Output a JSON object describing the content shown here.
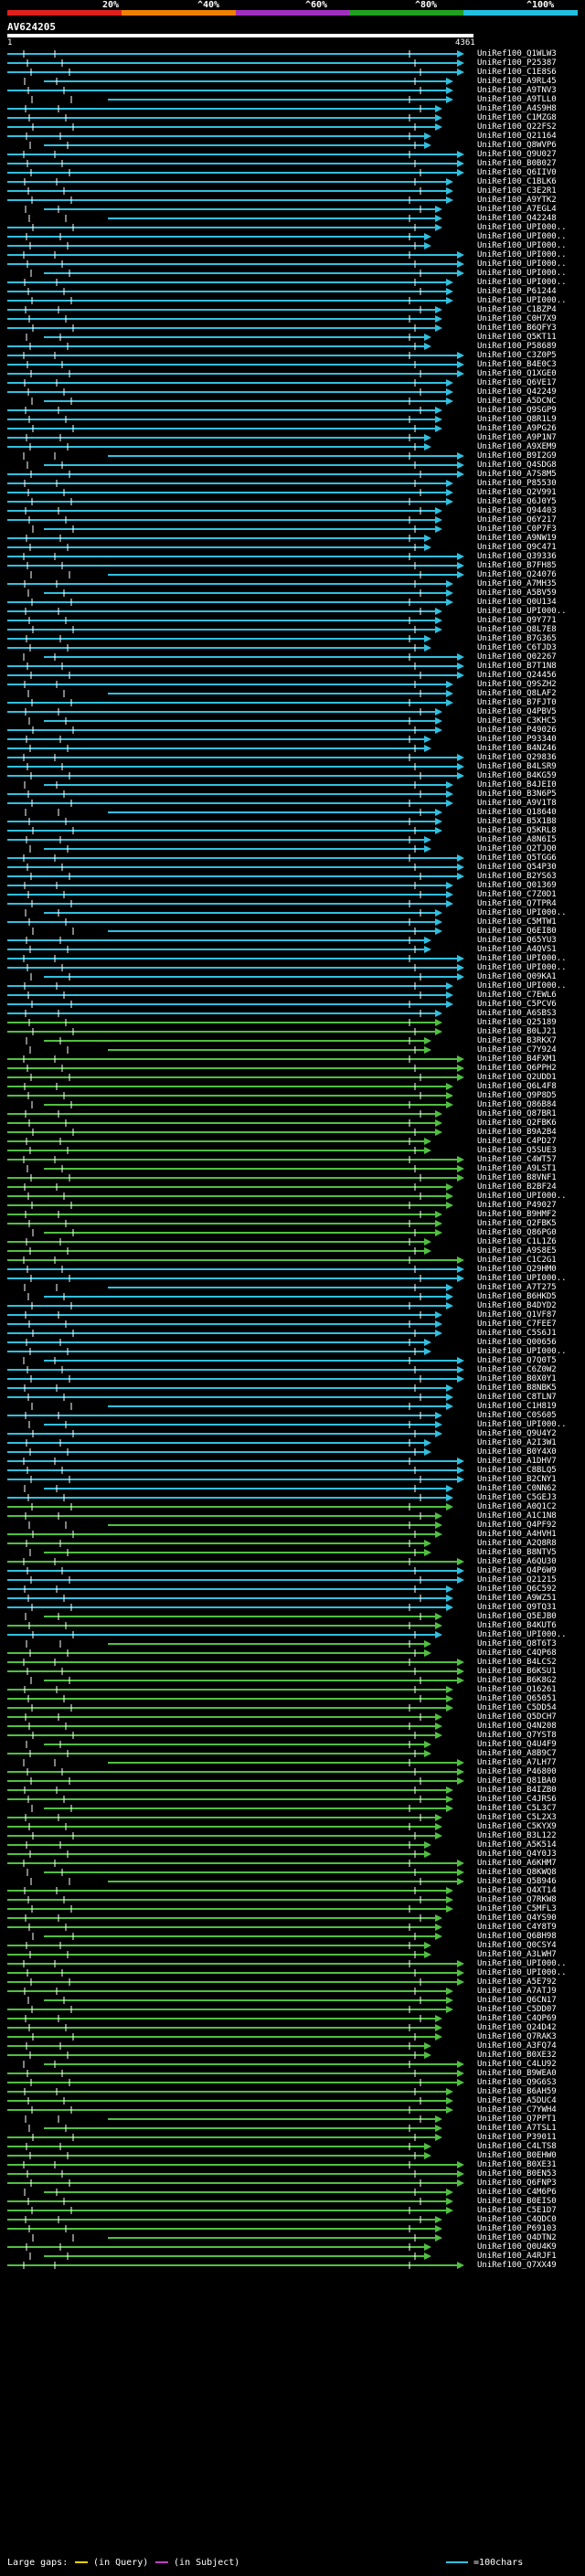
{
  "scale": {
    "percent_labels": [
      "20%",
      "^40%",
      "^60%",
      "^80%",
      "^100%"
    ],
    "bands": [
      "#e0201c",
      "#f08000",
      "#a030c0",
      "#20a020",
      "#20c0e0"
    ]
  },
  "query": {
    "name": "AV624205",
    "start": "1",
    "end": "4361"
  },
  "hits": [
    {
      "label": "UniRef100_Q1WLW3",
      "color": "#30c0e0"
    },
    {
      "label": "UniRef100_P25387",
      "color": "#30c0e0"
    },
    {
      "label": "UniRef100_C1E8S6",
      "color": "#30c0e0"
    },
    {
      "label": "UniRef100_A9RL45",
      "color": "#30c0e0"
    },
    {
      "label": "UniRef100_A9TNV3",
      "color": "#30c0e0"
    },
    {
      "label": "UniRef100_A9TLL0",
      "color": "#30c0e0"
    },
    {
      "label": "UniRef100_A4S9H8",
      "color": "#30c0e0"
    },
    {
      "label": "UniRef100_C1MZG8",
      "color": "#30c0e0"
    },
    {
      "label": "UniRef100_Q22FS2",
      "color": "#30c0e0"
    },
    {
      "label": "UniRef100_Q21164",
      "color": "#30c0e0"
    },
    {
      "label": "UniRef100_Q8WVP6",
      "color": "#30c0e0"
    },
    {
      "label": "UniRef100_Q9U027",
      "color": "#30c0e0"
    },
    {
      "label": "UniRef100_B0B027",
      "color": "#30c0e0"
    },
    {
      "label": "UniRef100_Q6IIV0",
      "color": "#30c0e0"
    },
    {
      "label": "UniRef100_C1BLK6",
      "color": "#30c0e0"
    },
    {
      "label": "UniRef100_C3E2R1",
      "color": "#30c0e0"
    },
    {
      "label": "UniRef100_A9YTK2",
      "color": "#30c0e0"
    },
    {
      "label": "UniRef100_A7EGL4",
      "color": "#30c0e0"
    },
    {
      "label": "UniRef100_Q42248",
      "color": "#30c0e0"
    },
    {
      "label": "UniRef100_UPI000..",
      "color": "#30c0e0"
    },
    {
      "label": "UniRef100_UPI000..",
      "color": "#30c0e0"
    },
    {
      "label": "UniRef100_UPI000..",
      "color": "#30c0e0"
    },
    {
      "label": "UniRef100_UPI000..",
      "color": "#30c0e0"
    },
    {
      "label": "UniRef100_UPI000..",
      "color": "#30c0e0"
    },
    {
      "label": "UniRef100_UPI000..",
      "color": "#30c0e0"
    },
    {
      "label": "UniRef100_UPI000..",
      "color": "#30c0e0"
    },
    {
      "label": "UniRef100_P61244",
      "color": "#30c0e0"
    },
    {
      "label": "UniRef100_UPI000..",
      "color": "#30c0e0"
    },
    {
      "label": "UniRef100_C1BZP4",
      "color": "#30c0e0"
    },
    {
      "label": "UniRef100_C0H7X9",
      "color": "#30c0e0"
    },
    {
      "label": "UniRef100_B6QFY3",
      "color": "#30c0e0"
    },
    {
      "label": "UniRef100_Q5KT11",
      "color": "#30c0e0"
    },
    {
      "label": "UniRef100_P58689",
      "color": "#30c0e0"
    },
    {
      "label": "UniRef100_C3Z0P5",
      "color": "#30c0e0"
    },
    {
      "label": "UniRef100_B4E0C3",
      "color": "#30c0e0"
    },
    {
      "label": "UniRef100_Q1XGE0",
      "color": "#30c0e0"
    },
    {
      "label": "UniRef100_Q6VE17",
      "color": "#30c0e0"
    },
    {
      "label": "UniRef100_Q42249",
      "color": "#30c0e0"
    },
    {
      "label": "UniRef100_A5DCNC",
      "color": "#30c0e0"
    },
    {
      "label": "UniRef100_Q9SGP9",
      "color": "#30c0e0"
    },
    {
      "label": "UniRef100_Q8R1L9",
      "color": "#30c0e0"
    },
    {
      "label": "UniRef100_A9PG26",
      "color": "#30c0e0"
    },
    {
      "label": "UniRef100_A9P1N7",
      "color": "#30c0e0"
    },
    {
      "label": "UniRef100_A9XEM9",
      "color": "#30c0e0"
    },
    {
      "label": "UniRef100_B9I2G9",
      "color": "#30c0e0"
    },
    {
      "label": "UniRef100_Q4SDG8",
      "color": "#30c0e0"
    },
    {
      "label": "UniRef100_A7S8M5",
      "color": "#30c0e0"
    },
    {
      "label": "UniRef100_P85530",
      "color": "#30c0e0"
    },
    {
      "label": "UniRef100_Q2V991",
      "color": "#30c0e0"
    },
    {
      "label": "UniRef100_Q6J0Y5",
      "color": "#30c0e0"
    },
    {
      "label": "UniRef100_Q94403",
      "color": "#30c0e0"
    },
    {
      "label": "UniRef100_Q6Y217",
      "color": "#30c0e0"
    },
    {
      "label": "UniRef100_C0P7F3",
      "color": "#30c0e0"
    },
    {
      "label": "UniRef100_A9NW19",
      "color": "#30c0e0"
    },
    {
      "label": "UniRef100_Q9C471",
      "color": "#30c0e0"
    },
    {
      "label": "UniRef100_Q39336",
      "color": "#30c0e0"
    },
    {
      "label": "UniRef100_B7FH85",
      "color": "#30c0e0"
    },
    {
      "label": "UniRef100_Q24076",
      "color": "#30c0e0"
    },
    {
      "label": "UniRef100_A7MH35",
      "color": "#30c0e0"
    },
    {
      "label": "UniRef100_A5BV59",
      "color": "#30c0e0"
    },
    {
      "label": "UniRef100_Q0U134",
      "color": "#30c0e0"
    },
    {
      "label": "UniRef100_UPI000..",
      "color": "#30c0e0"
    },
    {
      "label": "UniRef100_Q9Y771",
      "color": "#30c0e0"
    },
    {
      "label": "UniRef100_Q8L7E8",
      "color": "#30c0e0"
    },
    {
      "label": "UniRef100_B7G365",
      "color": "#30c0e0"
    },
    {
      "label": "UniRef100_C6TJD3",
      "color": "#30c0e0"
    },
    {
      "label": "UniRef100_Q02267",
      "color": "#30c0e0"
    },
    {
      "label": "UniRef100_B7T1N8",
      "color": "#30c0e0"
    },
    {
      "label": "UniRef100_Q24456",
      "color": "#30c0e0"
    },
    {
      "label": "UniRef100_Q9SZH2",
      "color": "#30c0e0"
    },
    {
      "label": "UniRef100_Q8LAF2",
      "color": "#30c0e0"
    },
    {
      "label": "UniRef100_B7FJT0",
      "color": "#30c0e0"
    },
    {
      "label": "UniRef100_Q4PBV5",
      "color": "#30c0e0"
    },
    {
      "label": "UniRef100_C3KHC5",
      "color": "#30c0e0"
    },
    {
      "label": "UniRef100_P49026",
      "color": "#30c0e0"
    },
    {
      "label": "UniRef100_P93340",
      "color": "#30c0e0"
    },
    {
      "label": "UniRef100_B4NZ46",
      "color": "#30c0e0"
    },
    {
      "label": "UniRef100_Q29836",
      "color": "#30c0e0"
    },
    {
      "label": "UniRef100_B4LSR9",
      "color": "#30c0e0"
    },
    {
      "label": "UniRef100_B4KG59",
      "color": "#30c0e0"
    },
    {
      "label": "UniRef100_B4JEI0",
      "color": "#30c0e0"
    },
    {
      "label": "UniRef100_B3N6P5",
      "color": "#30c0e0"
    },
    {
      "label": "UniRef100_A9V1T8",
      "color": "#30c0e0"
    },
    {
      "label": "UniRef100_Q18640",
      "color": "#30c0e0"
    },
    {
      "label": "UniRef100_B5X1B8",
      "color": "#30c0e0"
    },
    {
      "label": "UniRef100_Q5KRL8",
      "color": "#30c0e0"
    },
    {
      "label": "UniRef100_A8N6I5",
      "color": "#30c0e0"
    },
    {
      "label": "UniRef100_Q2TJQ0",
      "color": "#30c0e0"
    },
    {
      "label": "UniRef100_Q5TGG6",
      "color": "#30c0e0"
    },
    {
      "label": "UniRef100_Q54P30",
      "color": "#30c0e0"
    },
    {
      "label": "UniRef100_B2YS63",
      "color": "#30c0e0"
    },
    {
      "label": "UniRef100_Q01369",
      "color": "#30c0e0"
    },
    {
      "label": "UniRef100_C7Z0D1",
      "color": "#30c0e0"
    },
    {
      "label": "UniRef100_Q7TPR4",
      "color": "#30c0e0"
    },
    {
      "label": "UniRef100_UPI000..",
      "color": "#30c0e0"
    },
    {
      "label": "UniRef100_C5MTW1",
      "color": "#30c0e0"
    },
    {
      "label": "UniRef100_Q6EIB0",
      "color": "#30c0e0"
    },
    {
      "label": "UniRef100_Q65YU3",
      "color": "#30c0e0"
    },
    {
      "label": "UniRef100_A4QVS1",
      "color": "#30c0e0"
    },
    {
      "label": "UniRef100_UPI000..",
      "color": "#30c0e0"
    },
    {
      "label": "UniRef100_UPI000..",
      "color": "#30c0e0"
    },
    {
      "label": "UniRef100_Q09KA1",
      "color": "#30c0e0"
    },
    {
      "label": "UniRef100_UPI000..",
      "color": "#30c0e0"
    },
    {
      "label": "UniRef100_C7EWL6",
      "color": "#30c0e0"
    },
    {
      "label": "UniRef100_C5PCV6",
      "color": "#30c0e0"
    },
    {
      "label": "UniRef100_A6SBS3",
      "color": "#30c0e0"
    },
    {
      "label": "UniRef100_Q25189",
      "color": "#50c040"
    },
    {
      "label": "UniRef100_B0LJ21",
      "color": "#50c040"
    },
    {
      "label": "UniRef100_B3RKX7",
      "color": "#50c040"
    },
    {
      "label": "UniRef100_C7Y924",
      "color": "#50c040"
    },
    {
      "label": "UniRef100_B4FXM1",
      "color": "#50c040"
    },
    {
      "label": "UniRef100_Q6PPH2",
      "color": "#50c040"
    },
    {
      "label": "UniRef100_Q2UDD1",
      "color": "#50c040"
    },
    {
      "label": "UniRef100_Q6L4F8",
      "color": "#50c040"
    },
    {
      "label": "UniRef100_Q9P8D5",
      "color": "#50c040"
    },
    {
      "label": "UniRef100_Q86B84",
      "color": "#50c040"
    },
    {
      "label": "UniRef100_Q87BR1",
      "color": "#50c040"
    },
    {
      "label": "UniRef100_Q2FBK6",
      "color": "#50c040"
    },
    {
      "label": "UniRef100_B9A2B4",
      "color": "#50c040"
    },
    {
      "label": "UniRef100_C4PD27",
      "color": "#50c040"
    },
    {
      "label": "UniRef100_Q5SUE3",
      "color": "#50c040"
    },
    {
      "label": "UniRef100_C4WT57",
      "color": "#50c040"
    },
    {
      "label": "UniRef100_A9LST1",
      "color": "#50c040"
    },
    {
      "label": "UniRef100_B8VNF1",
      "color": "#50c040"
    },
    {
      "label": "UniRef100_B2BF24",
      "color": "#50c040"
    },
    {
      "label": "UniRef100_UPI000..",
      "color": "#50c040"
    },
    {
      "label": "UniRef100_P49027",
      "color": "#50c040"
    },
    {
      "label": "UniRef100_B9HMF2",
      "color": "#50c040"
    },
    {
      "label": "UniRef100_Q2FBK5",
      "color": "#50c040"
    },
    {
      "label": "UniRef100_Q86PG0",
      "color": "#50c040"
    },
    {
      "label": "UniRef100_C1L1Z6",
      "color": "#50c040"
    },
    {
      "label": "UniRef100_A9S8E5",
      "color": "#50c040"
    },
    {
      "label": "UniRef100_C1C2G1",
      "color": "#50c040"
    },
    {
      "label": "UniRef100_Q29HM0",
      "color": "#30c0e0"
    },
    {
      "label": "UniRef100_UPI000..",
      "color": "#30c0e0"
    },
    {
      "label": "UniRef100_A7T275",
      "color": "#30c0e0"
    },
    {
      "label": "UniRef100_B6HKD5",
      "color": "#30c0e0"
    },
    {
      "label": "UniRef100_B4DYD2",
      "color": "#30c0e0"
    },
    {
      "label": "UniRef100_Q1VF87",
      "color": "#30c0e0"
    },
    {
      "label": "UniRef100_C7FEE7",
      "color": "#30c0e0"
    },
    {
      "label": "UniRef100_C5S6J1",
      "color": "#30c0e0"
    },
    {
      "label": "UniRef100_Q00656",
      "color": "#30c0e0"
    },
    {
      "label": "UniRef100_UPI000..",
      "color": "#30c0e0"
    },
    {
      "label": "UniRef100_Q7Q0T5",
      "color": "#30c0e0"
    },
    {
      "label": "UniRef100_C6Z0W2",
      "color": "#30c0e0"
    },
    {
      "label": "UniRef100_B0X0Y1",
      "color": "#30c0e0"
    },
    {
      "label": "UniRef100_B8NBK5",
      "color": "#30c0e0"
    },
    {
      "label": "UniRef100_C8TLN7",
      "color": "#30c0e0"
    },
    {
      "label": "UniRef100_C1H819",
      "color": "#30c0e0"
    },
    {
      "label": "UniRef100_C0S605",
      "color": "#30c0e0"
    },
    {
      "label": "UniRef100_UPI000..",
      "color": "#30c0e0"
    },
    {
      "label": "UniRef100_Q9U4Y2",
      "color": "#30c0e0"
    },
    {
      "label": "UniRef100_A2I3W1",
      "color": "#30c0e0"
    },
    {
      "label": "UniRef100_B0Y4X0",
      "color": "#30c0e0"
    },
    {
      "label": "UniRef100_A1DHV7",
      "color": "#30c0e0"
    },
    {
      "label": "UniRef100_C8BLQ5",
      "color": "#30c0e0"
    },
    {
      "label": "UniRef100_B2CNY1",
      "color": "#30c0e0"
    },
    {
      "label": "UniRef100_C0NN62",
      "color": "#30c0e0"
    },
    {
      "label": "UniRef100_C5GEJ3",
      "color": "#30c0e0"
    },
    {
      "label": "UniRef100_A0Q1C2",
      "color": "#50c040"
    },
    {
      "label": "UniRef100_A1C1N8",
      "color": "#50c040"
    },
    {
      "label": "UniRef100_Q4PF92",
      "color": "#50c040"
    },
    {
      "label": "UniRef100_A4HVH1",
      "color": "#50c040"
    },
    {
      "label": "UniRef100_A2Q8R8",
      "color": "#50c040"
    },
    {
      "label": "UniRef100_B8NTV5",
      "color": "#50c040"
    },
    {
      "label": "UniRef100_A6QU30",
      "color": "#50c040"
    },
    {
      "label": "UniRef100_Q4P6W9",
      "color": "#30c0e0"
    },
    {
      "label": "UniRef100_Q21215",
      "color": "#30c0e0"
    },
    {
      "label": "UniRef100_Q6C592",
      "color": "#30c0e0"
    },
    {
      "label": "UniRef100_A9WZ51",
      "color": "#30c0e0"
    },
    {
      "label": "UniRef100_Q9TQ31",
      "color": "#30c0e0"
    },
    {
      "label": "UniRef100_Q5EJB0",
      "color": "#50c040"
    },
    {
      "label": "UniRef100_B4KUT6",
      "color": "#50c040"
    },
    {
      "label": "UniRef100_UPI000..",
      "color": "#30c0e0"
    },
    {
      "label": "UniRef100_Q8T6T3",
      "color": "#50c040"
    },
    {
      "label": "UniRef100_C4QP68",
      "color": "#50c040"
    },
    {
      "label": "UniRef100_B4LCS2",
      "color": "#50c040"
    },
    {
      "label": "UniRef100_B6KSU1",
      "color": "#50c040"
    },
    {
      "label": "UniRef100_B6K8G2",
      "color": "#50c040"
    },
    {
      "label": "UniRef100_Q16261",
      "color": "#50c040"
    },
    {
      "label": "UniRef100_Q65051",
      "color": "#50c040"
    },
    {
      "label": "UniRef100_C5DD54",
      "color": "#50c040"
    },
    {
      "label": "UniRef100_Q5DCH7",
      "color": "#50c040"
    },
    {
      "label": "UniRef100_Q4N208",
      "color": "#50c040"
    },
    {
      "label": "UniRef100_Q7YST8",
      "color": "#50c040"
    },
    {
      "label": "UniRef100_Q4U4F9",
      "color": "#50c040"
    },
    {
      "label": "UniRef100_A8B9C7",
      "color": "#50c040"
    },
    {
      "label": "UniRef100_A7LH77",
      "color": "#50c040"
    },
    {
      "label": "UniRef100_P46800",
      "color": "#50c040"
    },
    {
      "label": "UniRef100_Q81BA0",
      "color": "#50c040"
    },
    {
      "label": "UniRef100_B4IZB0",
      "color": "#50c040"
    },
    {
      "label": "UniRef100_C4JRS6",
      "color": "#50c040"
    },
    {
      "label": "UniRef100_C5L3C7",
      "color": "#50c040"
    },
    {
      "label": "UniRef100_C5L2X3",
      "color": "#50c040"
    },
    {
      "label": "UniRef100_C5KYX9",
      "color": "#50c040"
    },
    {
      "label": "UniRef100_B3L122",
      "color": "#50c040"
    },
    {
      "label": "UniRef100_A5K514",
      "color": "#50c040"
    },
    {
      "label": "UniRef100_Q4Y0J3",
      "color": "#50c040"
    },
    {
      "label": "UniRef100_A6KHM7",
      "color": "#50c040"
    },
    {
      "label": "UniRef100_Q8KWQ8",
      "color": "#50c040"
    },
    {
      "label": "UniRef100_Q5B946",
      "color": "#50c040"
    },
    {
      "label": "UniRef100_Q4XT14",
      "color": "#50c040"
    },
    {
      "label": "UniRef100_Q7RKW8",
      "color": "#50c040"
    },
    {
      "label": "UniRef100_C5MFL3",
      "color": "#50c040"
    },
    {
      "label": "UniRef100_Q4YS90",
      "color": "#50c040"
    },
    {
      "label": "UniRef100_C4Y8T9",
      "color": "#50c040"
    },
    {
      "label": "UniRef100_Q6BH98",
      "color": "#50c040"
    },
    {
      "label": "UniRef100_Q0CSY4",
      "color": "#50c040"
    },
    {
      "label": "UniRef100_A3LWH7",
      "color": "#50c040"
    },
    {
      "label": "UniRef100_UPI000..",
      "color": "#50c040"
    },
    {
      "label": "UniRef100_UPI000..",
      "color": "#50c040"
    },
    {
      "label": "UniRef100_A5E792",
      "color": "#50c040"
    },
    {
      "label": "UniRef100_A7ATJ9",
      "color": "#50c040"
    },
    {
      "label": "UniRef100_Q6CN17",
      "color": "#50c040"
    },
    {
      "label": "UniRef100_C5DD07",
      "color": "#50c040"
    },
    {
      "label": "UniRef100_C4QP69",
      "color": "#50c040"
    },
    {
      "label": "UniRef100_Q24D42",
      "color": "#50c040"
    },
    {
      "label": "UniRef100_Q7RAK3",
      "color": "#50c040"
    },
    {
      "label": "UniRef100_A3FQ74",
      "color": "#50c040"
    },
    {
      "label": "UniRef100_B0XE32",
      "color": "#50c040"
    },
    {
      "label": "UniRef100_C4LU92",
      "color": "#50c040"
    },
    {
      "label": "UniRef100_B9WEA0",
      "color": "#50c040"
    },
    {
      "label": "UniRef100_Q9G6S3",
      "color": "#50c040"
    },
    {
      "label": "UniRef100_B6AH59",
      "color": "#50c040"
    },
    {
      "label": "UniRef100_A5DUC4",
      "color": "#50c040"
    },
    {
      "label": "UniRef100_C7YWH4",
      "color": "#50c040"
    },
    {
      "label": "UniRef100_Q7PPT1",
      "color": "#50c040"
    },
    {
      "label": "UniRef100_A7TSL1",
      "color": "#50c040"
    },
    {
      "label": "UniRef100_P39011",
      "color": "#50c040"
    },
    {
      "label": "UniRef100_C4LTS8",
      "color": "#50c040"
    },
    {
      "label": "UniRef100_B0EHW0",
      "color": "#50c040"
    },
    {
      "label": "UniRef100_B0XE31",
      "color": "#50c040"
    },
    {
      "label": "UniRef100_B0EN53",
      "color": "#50c040"
    },
    {
      "label": "UniRef100_Q6FNP3",
      "color": "#50c040"
    },
    {
      "label": "UniRef100_C4M6P6",
      "color": "#50c040"
    },
    {
      "label": "UniRef100_B0EIS0",
      "color": "#50c040"
    },
    {
      "label": "UniRef100_C5E1D7",
      "color": "#50c040"
    },
    {
      "label": "UniRef100_C4QDC0",
      "color": "#50c040"
    },
    {
      "label": "UniRef100_P69103",
      "color": "#50c040"
    },
    {
      "label": "UniRef100_Q4DTN2",
      "color": "#50c040"
    },
    {
      "label": "UniRef100_Q0U4K9",
      "color": "#50c040"
    },
    {
      "label": "UniRef100_A4RJF1",
      "color": "#50c040"
    },
    {
      "label": "UniRef100_Q7XX49",
      "color": "#50c040"
    }
  ],
  "legend": {
    "large_gaps_label": "Large gaps:",
    "in_query": "(in Query)",
    "in_subject": "(in Subject)",
    "scale_label": "=100chars",
    "gap_query_color": "#ffd200",
    "gap_subject_color": "#c040c0",
    "scale_color": "#30c0e0"
  }
}
